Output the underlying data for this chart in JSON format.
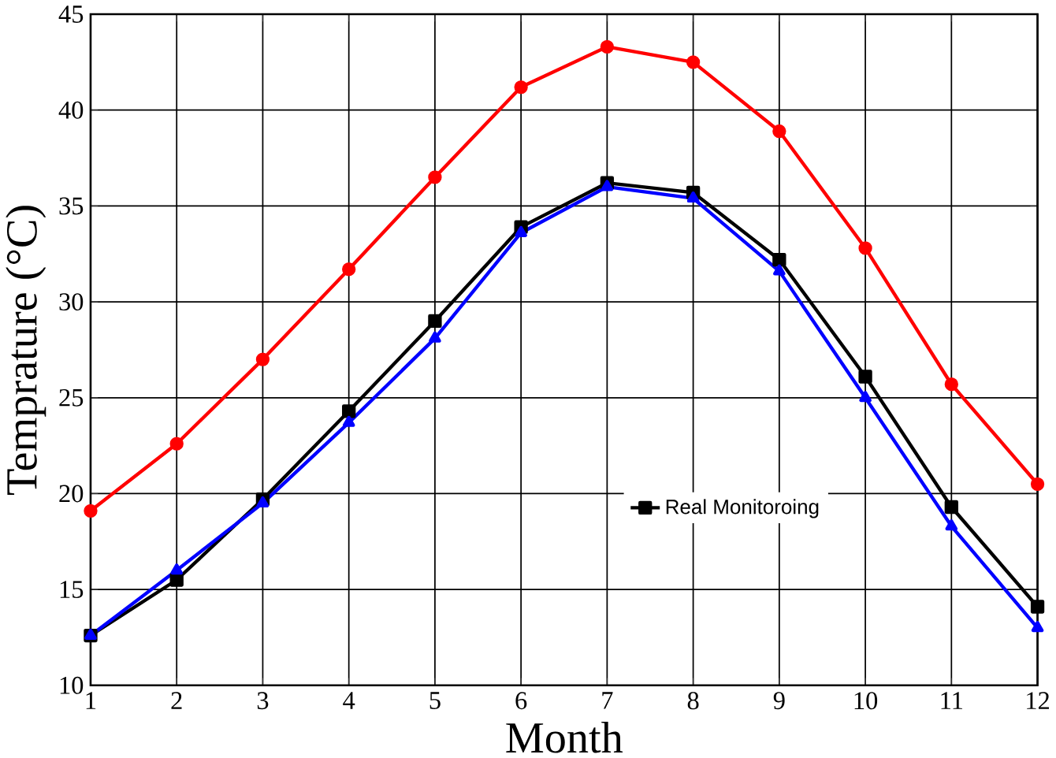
{
  "chart_data": {
    "type": "line",
    "xlabel": "Month",
    "ylabel": "Temprature (°C)",
    "x": [
      1,
      2,
      3,
      4,
      5,
      6,
      7,
      8,
      9,
      10,
      11,
      12
    ],
    "series": [
      {
        "name": "Real Monitoroing",
        "color": "#000000",
        "marker": "square",
        "values": [
          12.6,
          15.5,
          19.7,
          24.3,
          29.0,
          33.9,
          36.2,
          35.7,
          32.2,
          26.1,
          19.3,
          14.1
        ]
      },
      {
        "color": "#ff0000",
        "marker": "circle",
        "values": [
          19.1,
          22.6,
          27.0,
          31.7,
          36.5,
          41.2,
          43.3,
          42.5,
          38.9,
          32.8,
          25.7,
          20.5
        ]
      },
      {
        "color": "#0000ff",
        "marker": "triangle",
        "values": [
          12.6,
          16.0,
          19.5,
          23.7,
          28.1,
          33.6,
          36.0,
          35.4,
          31.6,
          25.0,
          18.3,
          13.0
        ]
      }
    ],
    "xlim": [
      1,
      12
    ],
    "xticks": [
      1,
      2,
      3,
      4,
      5,
      6,
      7,
      8,
      9,
      10,
      11,
      12
    ],
    "ylim": [
      10,
      45
    ],
    "yticks": [
      10,
      15,
      20,
      25,
      30,
      35,
      40,
      45
    ],
    "grid": true,
    "legend": "bottom right",
    "line_style": "solid"
  }
}
